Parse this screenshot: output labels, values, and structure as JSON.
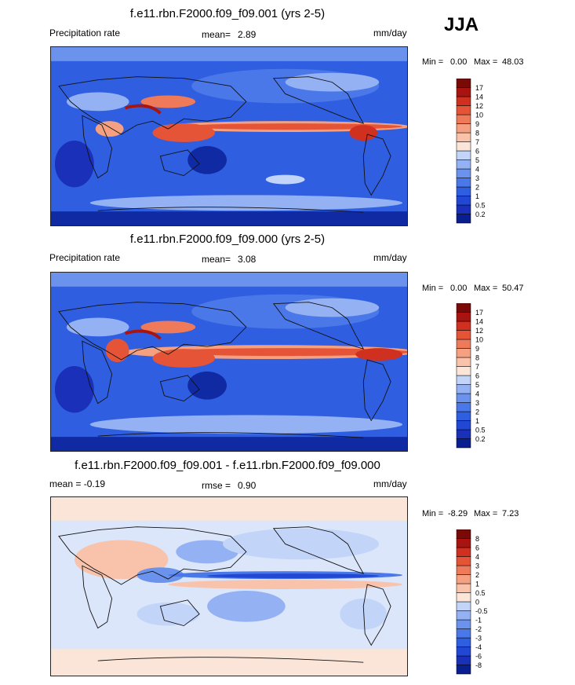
{
  "season": "JJA",
  "chart_data": [
    {
      "type": "heatmap",
      "title": "f.e11.rbn.F2000.f09_f09.001 (yrs 2-5)",
      "left_label": "Precipitation rate",
      "stat_label": "mean=",
      "stat_value": "2.89",
      "units": "mm/day",
      "min_label": "Min =",
      "min_value": "0.00",
      "max_label": "Max =",
      "max_value": "48.03",
      "levels": [
        "0.2",
        "0.5",
        "1",
        "2",
        "3",
        "4",
        "5",
        "6",
        "7",
        "8",
        "9",
        "10",
        "12",
        "14",
        "17"
      ],
      "colors": [
        "#0a1f8f",
        "#1a30b8",
        "#2147d4",
        "#2e5fe0",
        "#4a78e8",
        "#6b93ee",
        "#93b1f3",
        "#c2d5f8",
        "#fbe5d8",
        "#f8c3aa",
        "#f4a081",
        "#ef7a5a",
        "#e55437",
        "#cf3020",
        "#a8140f",
        "#7a0a08"
      ]
    },
    {
      "type": "heatmap",
      "title": "f.e11.rbn.F2000.f09_f09.000 (yrs 2-5)",
      "left_label": "Precipitation rate",
      "stat_label": "mean=",
      "stat_value": "3.08",
      "units": "mm/day",
      "min_label": "Min =",
      "min_value": "0.00",
      "max_label": "Max =",
      "max_value": "50.47",
      "levels": [
        "0.2",
        "0.5",
        "1",
        "2",
        "3",
        "4",
        "5",
        "6",
        "7",
        "8",
        "9",
        "10",
        "12",
        "14",
        "17"
      ],
      "colors": [
        "#0a1f8f",
        "#1a30b8",
        "#2147d4",
        "#2e5fe0",
        "#4a78e8",
        "#6b93ee",
        "#93b1f3",
        "#c2d5f8",
        "#fbe5d8",
        "#f8c3aa",
        "#f4a081",
        "#ef7a5a",
        "#e55437",
        "#cf3020",
        "#a8140f",
        "#7a0a08"
      ]
    },
    {
      "type": "heatmap",
      "title": "f.e11.rbn.F2000.f09_f09.001 - f.e11.rbn.F2000.f09_f09.000",
      "left_label": "mean =  -0.19",
      "stat_label": "rmse =",
      "stat_value": "0.90",
      "units": "mm/day",
      "min_label": "Min =",
      "min_value": "-8.29",
      "max_label": "Max =",
      "max_value": "7.23",
      "levels": [
        "-8",
        "-6",
        "-4",
        "-3",
        "-2",
        "-1",
        "-0.5",
        "0",
        "0.5",
        "1",
        "2",
        "3",
        "4",
        "6",
        "8"
      ],
      "colors": [
        "#0a1f8f",
        "#1a30b8",
        "#2147d4",
        "#2e5fe0",
        "#4a78e8",
        "#6b93ee",
        "#93b1f3",
        "#c2d5f8",
        "#fbe5d8",
        "#f8c3aa",
        "#f4a081",
        "#ef7a5a",
        "#e55437",
        "#cf3020",
        "#a8140f",
        "#7a0a08"
      ]
    }
  ]
}
